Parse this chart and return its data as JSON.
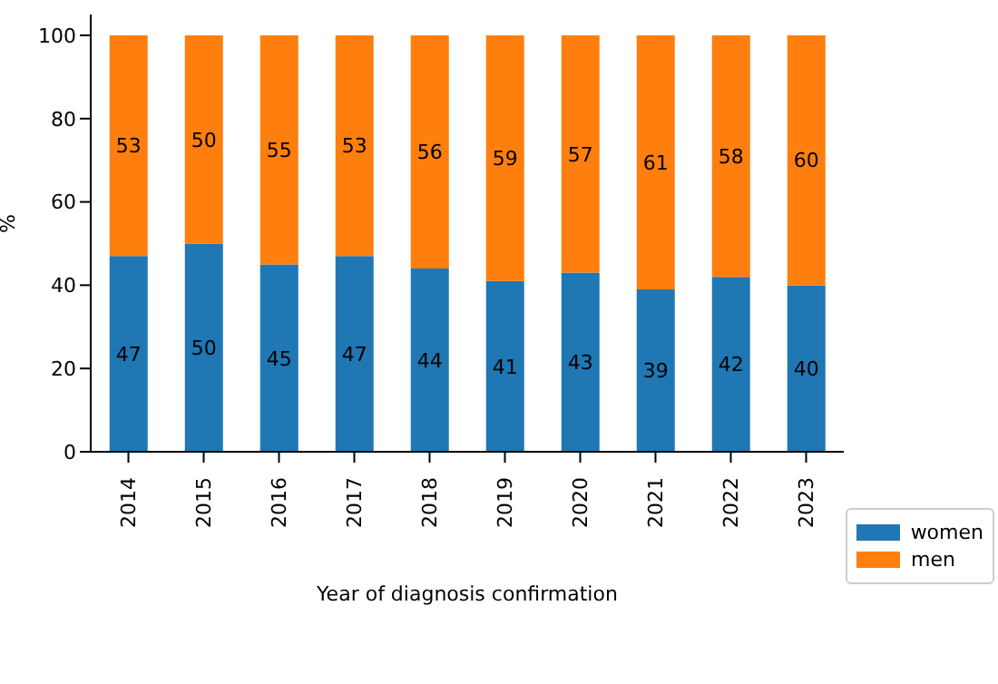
{
  "chart_data": {
    "type": "bar",
    "stacked": true,
    "xlabel": "Year of diagnosis confirmation",
    "ylabel": "%",
    "categories": [
      "2014",
      "2015",
      "2016",
      "2017",
      "2018",
      "2019",
      "2020",
      "2021",
      "2022",
      "2023"
    ],
    "series": [
      {
        "name": "women",
        "color": "#1f77b4",
        "values": [
          47,
          50,
          45,
          47,
          44,
          41,
          43,
          39,
          42,
          40
        ]
      },
      {
        "name": "men",
        "color": "#ff7f0e",
        "values": [
          53,
          50,
          55,
          53,
          56,
          59,
          57,
          61,
          58,
          60
        ]
      }
    ],
    "ylim": [
      0,
      105
    ],
    "yticks": [
      0,
      20,
      40,
      60,
      80,
      100
    ],
    "data_labels": true,
    "legend": "bottom right",
    "grid": false
  }
}
